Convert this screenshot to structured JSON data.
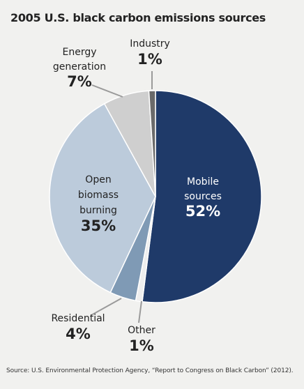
{
  "chart_data": {
    "type": "pie",
    "title": "2005 U.S. black carbon emissions sources",
    "source": "Source: U.S. Environmental Protection Agency, “Report to Congress on Black Carbon” (2012).",
    "slices": [
      {
        "label_lines": [
          "Mobile",
          "sources"
        ],
        "value": 52,
        "value_label": "52%",
        "color": "#1f3a69"
      },
      {
        "label_lines": [
          "Other"
        ],
        "value": 1,
        "value_label": "1%",
        "color": "#eeeeee"
      },
      {
        "label_lines": [
          "Residential"
        ],
        "value": 4,
        "value_label": "4%",
        "color": "#7f9ab5"
      },
      {
        "label_lines": [
          "Open",
          "biomass",
          "burning"
        ],
        "value": 35,
        "value_label": "35%",
        "color": "#bccbdb"
      },
      {
        "label_lines": [
          "Energy",
          "generation"
        ],
        "value": 7,
        "value_label": "7%",
        "color": "#cfcfcf"
      },
      {
        "label_lines": [
          "Industry"
        ],
        "value": 1,
        "value_label": "1%",
        "color": "#6a6a6a"
      }
    ]
  }
}
